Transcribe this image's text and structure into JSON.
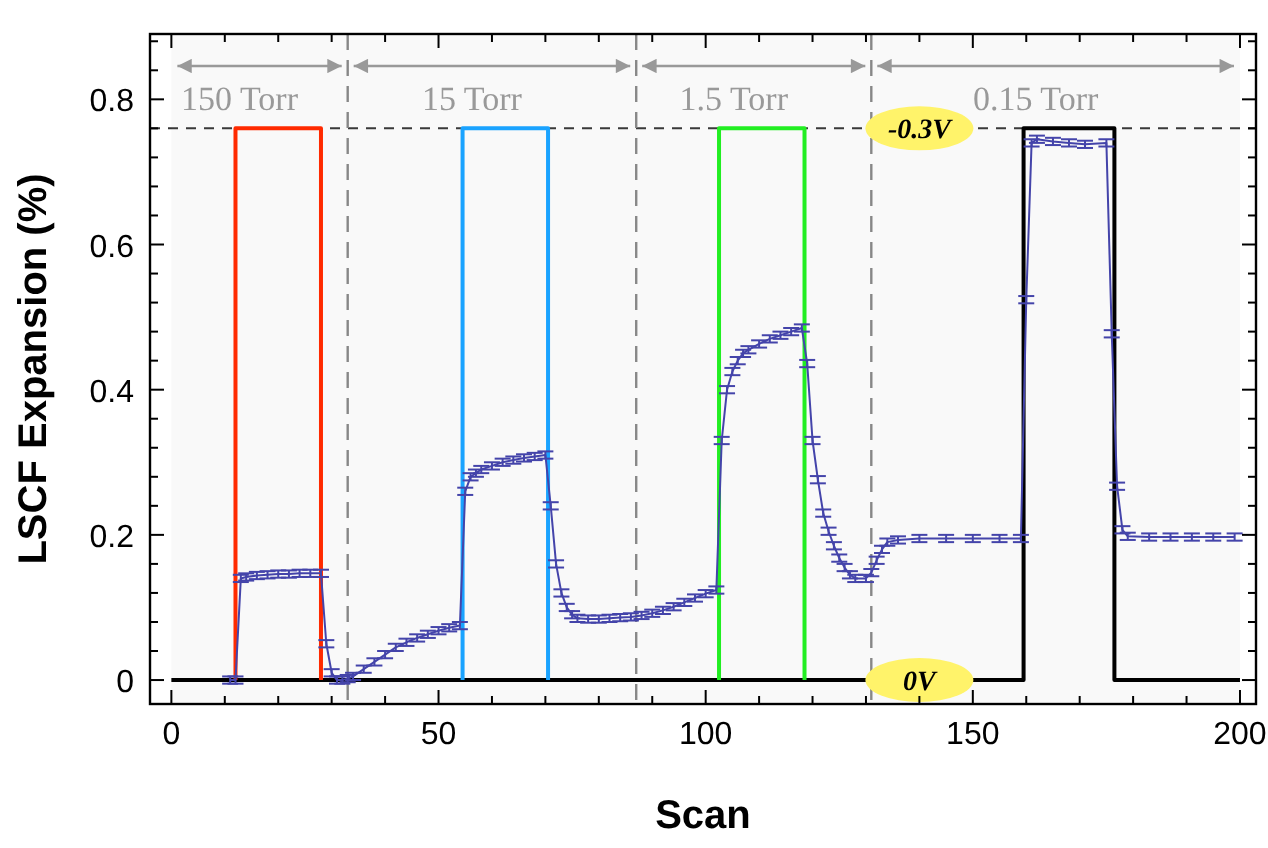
{
  "chart_data": {
    "type": "line",
    "xlabel": "Scan",
    "ylabel": "LSCF Expansion (%)",
    "xlim": [
      -4,
      203
    ],
    "ylim": [
      -0.033,
      0.89
    ],
    "xticks": [
      0,
      {
        "value": 10,
        "label": null
      },
      {
        "value": 20,
        "label": null
      },
      {
        "value": 30,
        "label": null
      },
      {
        "value": 40,
        "label": null
      },
      50,
      {
        "value": 60,
        "label": null
      },
      {
        "value": 70,
        "label": null
      },
      {
        "value": 80,
        "label": null
      },
      {
        "value": 90,
        "label": null
      },
      100,
      {
        "value": 110,
        "label": null
      },
      {
        "value": 120,
        "label": null
      },
      {
        "value": 130,
        "label": null
      },
      {
        "value": 140,
        "label": null
      },
      150,
      {
        "value": 160,
        "label": null
      },
      {
        "value": 170,
        "label": null
      },
      {
        "value": 180,
        "label": null
      },
      {
        "value": 190,
        "label": null
      },
      200
    ],
    "yticks": [
      0,
      {
        "value": 0.04,
        "label": null
      },
      {
        "value": 0.08,
        "label": null
      },
      {
        "value": 0.12,
        "label": null
      },
      {
        "value": 0.16,
        "label": null
      },
      0.2,
      {
        "value": 0.24,
        "label": null
      },
      {
        "value": 0.28,
        "label": null
      },
      {
        "value": 0.32,
        "label": null
      },
      {
        "value": 0.36,
        "label": null
      },
      0.4,
      {
        "value": 0.44,
        "label": null
      },
      {
        "value": 0.48,
        "label": null
      },
      {
        "value": 0.52,
        "label": null
      },
      {
        "value": 0.56,
        "label": null
      },
      0.6,
      {
        "value": 0.64,
        "label": null
      },
      {
        "value": 0.68,
        "label": null
      },
      {
        "value": 0.72,
        "label": null
      },
      {
        "value": 0.76,
        "label": null
      },
      0.8,
      {
        "value": 0.84,
        "label": null
      },
      {
        "value": 0.88,
        "label": null
      }
    ],
    "grid": false,
    "series": [
      {
        "color": "#000000",
        "x": [
          0,
          159.5,
          159.5,
          176.5,
          176.5,
          200
        ],
        "values": [
          0,
          0,
          0.76,
          0.76,
          0,
          0
        ]
      },
      {
        "color": "#ff2a00",
        "x": [
          12,
          12,
          28,
          28
        ],
        "values": [
          0,
          0.76,
          0.76,
          0
        ]
      },
      {
        "color": "#1aa3ff",
        "x": [
          54.5,
          54.5,
          70.5,
          70.5
        ],
        "values": [
          0,
          0.76,
          0.76,
          0
        ]
      },
      {
        "color": "#22ee22",
        "x": [
          102.5,
          102.5,
          118.5,
          118.5
        ],
        "values": [
          0,
          0.76,
          0.76,
          0
        ]
      },
      {
        "color": "#4444aa",
        "x": [
          11,
          12,
          13,
          14,
          16,
          18,
          20,
          22,
          24,
          26,
          28,
          29,
          30,
          31,
          32,
          33,
          34,
          36,
          38,
          40,
          42,
          44,
          46,
          48,
          50,
          52,
          54,
          55,
          56,
          57,
          58,
          60,
          62,
          64,
          66,
          68,
          70,
          71,
          72,
          73,
          74,
          75,
          76,
          78,
          80,
          82,
          84,
          86,
          88,
          90,
          92,
          94,
          96,
          98,
          100,
          102,
          103,
          104,
          105,
          106,
          107,
          108,
          110,
          112,
          114,
          116,
          118,
          119,
          120,
          121,
          122,
          123,
          124,
          125,
          126,
          127,
          128,
          130,
          131,
          132,
          133,
          134,
          136,
          140,
          145,
          150,
          155,
          159,
          160,
          161,
          162,
          165,
          168,
          171,
          175,
          176,
          177,
          178,
          179,
          183,
          187,
          191,
          195,
          199
        ],
        "values": [
          0,
          0,
          0.14,
          0.142,
          0.144,
          0.145,
          0.146,
          0.146,
          0.147,
          0.147,
          0.147,
          0.05,
          0.01,
          0,
          0,
          0.002,
          0.005,
          0.015,
          0.025,
          0.035,
          0.045,
          0.052,
          0.058,
          0.063,
          0.068,
          0.072,
          0.075,
          0.26,
          0.28,
          0.285,
          0.29,
          0.295,
          0.3,
          0.303,
          0.306,
          0.308,
          0.31,
          0.24,
          0.16,
          0.12,
          0.1,
          0.09,
          0.085,
          0.084,
          0.084,
          0.085,
          0.086,
          0.087,
          0.089,
          0.092,
          0.096,
          0.101,
          0.107,
          0.113,
          0.119,
          0.124,
          0.33,
          0.4,
          0.425,
          0.44,
          0.45,
          0.455,
          0.463,
          0.47,
          0.475,
          0.48,
          0.485,
          0.436,
          0.33,
          0.276,
          0.23,
          0.205,
          0.185,
          0.168,
          0.155,
          0.145,
          0.14,
          0.14,
          0.148,
          0.165,
          0.18,
          0.19,
          0.193,
          0.195,
          0.195,
          0.195,
          0.195,
          0.195,
          0.524,
          0.74,
          0.745,
          0.742,
          0.74,
          0.738,
          0.74,
          0.477,
          0.267,
          0.207,
          0.198,
          0.197,
          0.197,
          0.197,
          0.197,
          0.197
        ],
        "errors": [
          0.005,
          0.005,
          0.005,
          0.005,
          0.005,
          0.005,
          0.005,
          0.005,
          0.005,
          0.005,
          0.005,
          0.005,
          0.005,
          0.005,
          0.005,
          0.005,
          0.005,
          0.005,
          0.005,
          0.005,
          0.005,
          0.005,
          0.005,
          0.005,
          0.005,
          0.005,
          0.005,
          0.005,
          0.005,
          0.005,
          0.005,
          0.005,
          0.005,
          0.005,
          0.005,
          0.005,
          0.005,
          0.005,
          0.005,
          0.005,
          0.005,
          0.005,
          0.005,
          0.005,
          0.005,
          0.005,
          0.005,
          0.005,
          0.005,
          0.005,
          0.005,
          0.005,
          0.005,
          0.005,
          0.005,
          0.005,
          0.005,
          0.005,
          0.005,
          0.005,
          0.005,
          0.005,
          0.005,
          0.005,
          0.005,
          0.005,
          0.005,
          0.005,
          0.005,
          0.005,
          0.005,
          0.005,
          0.005,
          0.005,
          0.005,
          0.005,
          0.005,
          0.005,
          0.005,
          0.005,
          0.005,
          0.005,
          0.005,
          0.005,
          0.005,
          0.005,
          0.005,
          0.005,
          0.005,
          0.005,
          0.005,
          0.005,
          0.005,
          0.005,
          0.005,
          0.005,
          0.005,
          0.005,
          0.005,
          0.005,
          0.005,
          0.005,
          0.005,
          0.005
        ]
      }
    ],
    "ref_lines": [
      {
        "axis": "y",
        "value": 0.76,
        "color": "#333333",
        "line_style": "dashed"
      },
      {
        "axis": "x",
        "value": 33,
        "color": "#888888",
        "line_style": "dashed"
      },
      {
        "axis": "x",
        "value": 87,
        "color": "#888888",
        "line_style": "dashed"
      },
      {
        "axis": "x",
        "value": 131,
        "color": "#888888",
        "line_style": "dashed"
      }
    ],
    "bands": [
      {
        "axis": "x",
        "from": 0,
        "to": 33,
        "label": "150 Torr",
        "color": "#999999"
      },
      {
        "axis": "x",
        "from": 33,
        "to": 87,
        "label": "15 Torr",
        "color": "#999999"
      },
      {
        "axis": "x",
        "from": 87,
        "to": 131,
        "label": "1.5 Torr",
        "color": "#999999"
      },
      {
        "axis": "x",
        "from": 131,
        "to": 200,
        "label": "0.15 Torr",
        "color": "#999999"
      }
    ],
    "annotations": [
      {
        "text": "-0.3V",
        "x": 140,
        "y": 0.76
      },
      {
        "text": "0V",
        "x": 140,
        "y": 0
      }
    ]
  }
}
